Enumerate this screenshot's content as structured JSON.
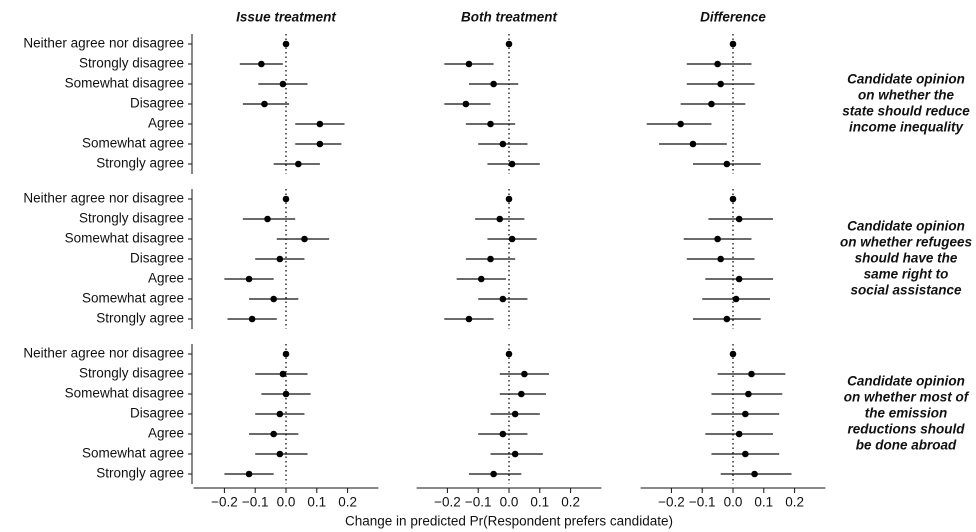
{
  "chart_data": {
    "type": "coefplot",
    "xlabel": "Change in predicted Pr(Respondent prefers candidate)",
    "xlim": [
      -0.3,
      0.3
    ],
    "xticks": [
      {
        "value": -0.2,
        "label": "−0.2"
      },
      {
        "value": -0.1,
        "label": "−0.1"
      },
      {
        "value": 0,
        "label": "0.0"
      },
      0.1,
      0.2
    ],
    "columns": [
      "Issue treatment",
      "Both treatment",
      "Difference"
    ],
    "reference_line": 0,
    "panels": [
      {
        "label_lines": [
          "Candidate opinion",
          "on whether the",
          "state should reduce",
          "income inequality"
        ],
        "categories": [
          "Neither agree nor disagree",
          "Strongly disagree",
          "Somewhat disagree",
          "Disagree",
          "Agree",
          "Somewhat agree",
          "Strongly agree"
        ],
        "cells": [
          {
            "values": [
              0,
              -0.08,
              -0.01,
              -0.07,
              0.11,
              0.11,
              0.04
            ],
            "low": [
              0,
              -0.15,
              -0.09,
              -0.14,
              0.03,
              0.03,
              -0.04
            ],
            "high": [
              0,
              -0.01,
              0.07,
              0.01,
              0.19,
              0.18,
              0.11
            ]
          },
          {
            "values": [
              0,
              -0.13,
              -0.05,
              -0.14,
              -0.06,
              -0.02,
              0.01
            ],
            "low": [
              0,
              -0.21,
              -0.13,
              -0.21,
              -0.14,
              -0.1,
              -0.07
            ],
            "high": [
              0,
              -0.05,
              0.03,
              -0.06,
              0.02,
              0.06,
              0.1
            ]
          },
          {
            "values": [
              0,
              -0.05,
              -0.04,
              -0.07,
              -0.17,
              -0.13,
              -0.02
            ],
            "low": [
              0,
              -0.15,
              -0.15,
              -0.17,
              -0.28,
              -0.24,
              -0.13
            ],
            "high": [
              0,
              0.06,
              0.07,
              0.04,
              -0.07,
              -0.02,
              0.09
            ]
          }
        ]
      },
      {
        "label_lines": [
          "Candidate opinion",
          "on whether refugees",
          "should have the",
          "same right to",
          "social assistance"
        ],
        "categories": [
          "Neither agree nor disagree",
          "Strongly disagree",
          "Somewhat disagree",
          "Disagree",
          "Agree",
          "Somewhat agree",
          "Strongly agree"
        ],
        "cells": [
          {
            "values": [
              0,
              -0.06,
              0.06,
              -0.02,
              -0.12,
              -0.04,
              -0.11
            ],
            "low": [
              0,
              -0.14,
              -0.03,
              -0.1,
              -0.2,
              -0.12,
              -0.19
            ],
            "high": [
              0,
              0.03,
              0.14,
              0.06,
              -0.04,
              0.04,
              -0.03
            ]
          },
          {
            "values": [
              0,
              -0.03,
              0.01,
              -0.06,
              -0.09,
              -0.02,
              -0.13
            ],
            "low": [
              0,
              -0.11,
              -0.07,
              -0.14,
              -0.17,
              -0.1,
              -0.21
            ],
            "high": [
              0,
              0.05,
              0.09,
              0.02,
              -0.01,
              0.06,
              -0.05
            ]
          },
          {
            "values": [
              0,
              0.02,
              -0.05,
              -0.04,
              0.02,
              0.01,
              -0.02
            ],
            "low": [
              0,
              -0.08,
              -0.16,
              -0.15,
              -0.09,
              -0.1,
              -0.13
            ],
            "high": [
              0,
              0.13,
              0.06,
              0.07,
              0.13,
              0.12,
              0.09
            ]
          }
        ]
      },
      {
        "label_lines": [
          "Candidate opinion",
          "on whether most of",
          "the emission",
          "reductions should",
          "be done abroad"
        ],
        "categories": [
          "Neither agree nor disagree",
          "Strongly disagree",
          "Somewhat disagree",
          "Disagree",
          "Agree",
          "Somewhat agree",
          "Strongly agree"
        ],
        "cells": [
          {
            "values": [
              0,
              -0.01,
              0,
              -0.02,
              -0.04,
              -0.02,
              -0.12
            ],
            "low": [
              0,
              -0.1,
              -0.08,
              -0.1,
              -0.12,
              -0.1,
              -0.2
            ],
            "high": [
              0,
              0.07,
              0.08,
              0.06,
              0.04,
              0.07,
              -0.04
            ]
          },
          {
            "values": [
              0,
              0.05,
              0.04,
              0.02,
              -0.02,
              0.02,
              -0.05
            ],
            "low": [
              0,
              -0.03,
              -0.03,
              -0.06,
              -0.1,
              -0.06,
              -0.13
            ],
            "high": [
              0,
              0.13,
              0.12,
              0.1,
              0.06,
              0.11,
              0.04
            ]
          },
          {
            "values": [
              0,
              0.06,
              0.05,
              0.04,
              0.02,
              0.04,
              0.07
            ],
            "low": [
              0,
              -0.05,
              -0.07,
              -0.07,
              -0.09,
              -0.07,
              -0.04
            ],
            "high": [
              0,
              0.17,
              0.16,
              0.15,
              0.13,
              0.15,
              0.19
            ]
          }
        ]
      }
    ]
  }
}
